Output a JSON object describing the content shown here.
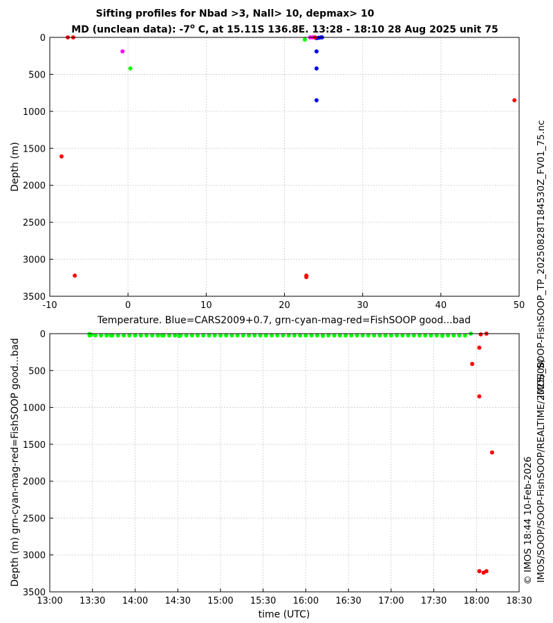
{
  "title_line1": "Sifting profiles for Nbad >3, Nall> 10, depmax> 10",
  "title_line2_pre": "MD (unclean data): -7",
  "title_line2_sup": "o",
  "title_line2_post": " C, at 15.11S 136.8E. 13:28 - 18:10 28 Aug 2025 unit 75",
  "side_text_right": "IMOS_SOOP-FishSOOP_TP_20250828T184530Z_FV01_75.nc",
  "side_text_bottom1": "© IMOS 18:44 10-Feb-2026",
  "side_text_bottom2": "IMOS/SOOP/SOOP-FishSOOP/REALTIME/2025/08/",
  "colors": {
    "blue": "#0000ff",
    "green": "#00ff00",
    "cyan": "#00ffff",
    "magenta": "#ff00ff",
    "red": "#ff0000",
    "grid": "#c8c8c8"
  },
  "chart_data": [
    {
      "type": "scatter",
      "xlabel": "Temperature. Blue=CARS2009+0.7, grn-cyan-mag-red=FishSOOP good...bad",
      "ylabel": "Depth (m)",
      "xlim": [
        -10,
        50
      ],
      "ylim": [
        3500,
        0
      ],
      "xticks": [
        -10,
        0,
        10,
        20,
        30,
        40,
        50
      ],
      "yticks": [
        0,
        500,
        1000,
        1500,
        2000,
        2500,
        3000,
        3500
      ],
      "grid": true,
      "series": [
        {
          "color": "blue",
          "points": [
            [
              24.1,
              10
            ],
            [
              24.4,
              5
            ],
            [
              24.7,
              0
            ],
            [
              24.8,
              0
            ],
            [
              24.1,
              190
            ],
            [
              24.1,
              420
            ],
            [
              24.1,
              850
            ]
          ]
        },
        {
          "color": "green",
          "points": [
            [
              22.6,
              30
            ],
            [
              0.3,
              420
            ]
          ]
        },
        {
          "color": "magenta",
          "points": [
            [
              23.3,
              0
            ],
            [
              23.6,
              0
            ],
            [
              23.9,
              0
            ],
            [
              -0.7,
              190
            ]
          ]
        },
        {
          "color": "red",
          "points": [
            [
              -7.7,
              0
            ],
            [
              -7.0,
              0
            ],
            [
              23.9,
              0
            ],
            [
              49.4,
              850
            ],
            [
              -8.5,
              1610
            ],
            [
              -6.8,
              3220
            ],
            [
              22.8,
              3220
            ],
            [
              22.8,
              3240
            ]
          ]
        }
      ]
    },
    {
      "type": "scatter",
      "xlabel": "time (UTC)",
      "ylabel": "Depth (m) grn-cyan-mag-red=FishSOOP good...bad",
      "xlim": [
        "13:00",
        "18:30"
      ],
      "ylim": [
        3500,
        0
      ],
      "xticks": [
        "13:00",
        "13:30",
        "14:00",
        "14:30",
        "15:00",
        "15:30",
        "16:00",
        "16:30",
        "17:00",
        "17:30",
        "18:00",
        "18:30"
      ],
      "yticks": [
        0,
        500,
        1000,
        1500,
        2000,
        2500,
        3000,
        3500
      ],
      "grid": true,
      "series": [
        {
          "color": "green",
          "start": "13:28",
          "end": "17:52",
          "step_minutes": 4,
          "depth": 25,
          "extra_points": [
            [
              "13:28",
              5
            ],
            [
              "13:29",
              15
            ],
            [
              "13:43",
              25
            ],
            [
              "14:19",
              25
            ],
            [
              "14:31",
              30
            ],
            [
              "16:12",
              30
            ],
            [
              "17:36",
              30
            ],
            [
              "17:56",
              0
            ]
          ]
        },
        {
          "color": "red",
          "points": [
            [
              "17:57",
              410
            ],
            [
              "18:02",
              190
            ],
            [
              "18:03",
              10
            ],
            [
              "18:07",
              0
            ],
            [
              "18:02",
              850
            ],
            [
              "18:11",
              1610
            ],
            [
              "18:02",
              3220
            ],
            [
              "18:05",
              3240
            ],
            [
              "18:07",
              3220
            ]
          ]
        }
      ]
    }
  ]
}
